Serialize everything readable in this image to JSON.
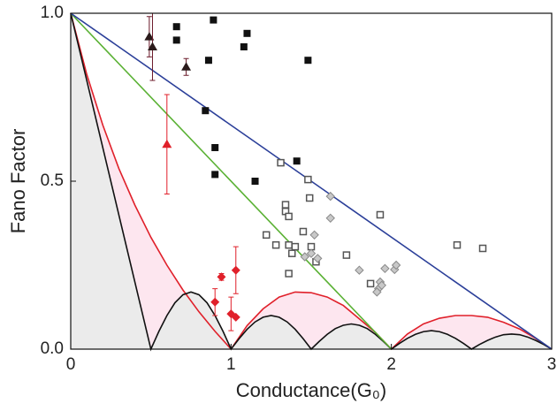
{
  "chart_data": {
    "type": "scatter",
    "x_label": "Conductance(G₀)",
    "y_label": "Fano Factor",
    "xlim": [
      0,
      3
    ],
    "ylim": [
      0,
      1
    ],
    "xticks": [
      0,
      1,
      2,
      3
    ],
    "yticks": [
      {
        "value": 0,
        "label": "0.0"
      },
      {
        "value": 0.5,
        "label": "0.5"
      },
      {
        "value": 1,
        "label": "1.0"
      }
    ],
    "grid": false,
    "series": [
      {
        "mode": "line",
        "color": "#e0202a",
        "fill": "#fde6ef",
        "x": [
          0,
          0.1,
          0.2,
          0.3,
          0.4,
          0.5,
          0.6,
          0.7,
          0.8,
          0.9,
          1,
          1.1,
          1.2,
          1.3,
          1.4,
          1.5,
          1.6,
          1.7,
          1.8,
          1.9,
          2,
          2.1,
          2.2,
          2.3,
          2.4,
          2.5,
          2.6,
          2.7,
          2.8,
          2.9,
          3
        ],
        "values": [
          1,
          0.818,
          0.667,
          0.538,
          0.429,
          0.333,
          0.25,
          0.176,
          0.111,
          0.053,
          0,
          0.07,
          0.12,
          0.155,
          0.17,
          0.168,
          0.155,
          0.13,
          0.09,
          0.05,
          0,
          0.045,
          0.075,
          0.092,
          0.1,
          0.1,
          0.095,
          0.08,
          0.06,
          0.032,
          0
        ]
      },
      {
        "mode": "line",
        "color": "#111111",
        "fill": "#ebebeb",
        "x": [
          0,
          0.5,
          0.55,
          0.6,
          0.65,
          0.7,
          0.75,
          0.8,
          0.85,
          0.9,
          0.95,
          1,
          1.05,
          1.1,
          1.15,
          1.2,
          1.25,
          1.3,
          1.35,
          1.4,
          1.45,
          1.5,
          1.55,
          1.6,
          1.65,
          1.7,
          1.75,
          1.8,
          1.85,
          1.9,
          1.95,
          2,
          2.05,
          2.1,
          2.15,
          2.2,
          2.25,
          2.3,
          2.35,
          2.4,
          2.45,
          2.5,
          2.55,
          2.6,
          2.65,
          2.7,
          2.75,
          2.8,
          2.85,
          2.9,
          2.95,
          3
        ],
        "values": [
          1,
          0,
          0.053,
          0.1,
          0.138,
          0.162,
          0.17,
          0.162,
          0.138,
          0.1,
          0.053,
          0,
          0.031,
          0.059,
          0.081,
          0.095,
          0.1,
          0.095,
          0.081,
          0.059,
          0.031,
          0,
          0.023,
          0.044,
          0.061,
          0.071,
          0.075,
          0.071,
          0.061,
          0.044,
          0.023,
          0,
          0.017,
          0.032,
          0.044,
          0.052,
          0.055,
          0.052,
          0.044,
          0.032,
          0.017,
          0,
          0.014,
          0.026,
          0.036,
          0.043,
          0.045,
          0.043,
          0.036,
          0.026,
          0.014,
          0
        ]
      },
      {
        "mode": "line",
        "color": "#5ab134",
        "x": [
          0,
          2
        ],
        "values": [
          1,
          0
        ]
      },
      {
        "mode": "line",
        "color": "#2b3f99",
        "x": [
          0,
          3
        ],
        "values": [
          1,
          0
        ]
      },
      {
        "mode": "markers",
        "marker": "open-square",
        "color": "#555555",
        "x": [
          1.31,
          1.48,
          1.49,
          1.34,
          1.34,
          1.36,
          1.22,
          1.28,
          1.36,
          1.4,
          1.38,
          1.5,
          1.53,
          1.72,
          1.36,
          1.87,
          1.93,
          2.41,
          2.57,
          1.45
        ],
        "values": [
          0.555,
          0.505,
          0.45,
          0.43,
          0.41,
          0.395,
          0.34,
          0.31,
          0.31,
          0.305,
          0.285,
          0.305,
          0.26,
          0.28,
          0.225,
          0.195,
          0.4,
          0.31,
          0.3,
          0.35
        ]
      },
      {
        "mode": "markers",
        "marker": "diamond",
        "color": "#888888",
        "x": [
          1.62,
          1.62,
          1.52,
          1.5,
          1.54,
          1.8,
          1.92,
          1.93,
          1.94,
          1.91,
          1.96,
          2.02,
          2.03,
          1.46
        ],
        "values": [
          0.39,
          0.455,
          0.34,
          0.285,
          0.27,
          0.235,
          0.18,
          0.2,
          0.19,
          0.17,
          0.24,
          0.237,
          0.25,
          0.275
        ]
      },
      {
        "mode": "markers",
        "marker": "square",
        "color": "#111111",
        "x": [
          0.66,
          0.89,
          0.66,
          1.1,
          1.08,
          0.86,
          1.48,
          0.84,
          0.9,
          0.9,
          1.15,
          1.41
        ],
        "values": [
          0.96,
          0.98,
          0.92,
          0.94,
          0.9,
          0.86,
          0.86,
          0.71,
          0.6,
          0.52,
          0.5,
          0.56
        ]
      },
      {
        "mode": "markers",
        "marker": "triangle",
        "color": "#2a1a1a",
        "error_color": "#6b1a2a",
        "x": [
          0.49,
          0.51,
          0.72
        ],
        "values": [
          0.93,
          0.9,
          0.84
        ],
        "errors": [
          0.06,
          0.1,
          0.025
        ]
      },
      {
        "mode": "markers",
        "marker": "triangle",
        "color": "#e0202a",
        "x": [
          0.6
        ],
        "values": [
          0.61
        ],
        "errors": [
          0.148
        ]
      },
      {
        "mode": "markers",
        "marker": "diamond-filled",
        "color": "#e0202a",
        "x": [
          0.9,
          0.94,
          1.0,
          1.03,
          1.03
        ],
        "values": [
          0.14,
          0.215,
          0.105,
          0.095,
          0.235
        ],
        "errors": [
          0.04,
          0.01,
          0.05,
          0.0,
          0.07
        ]
      }
    ]
  }
}
